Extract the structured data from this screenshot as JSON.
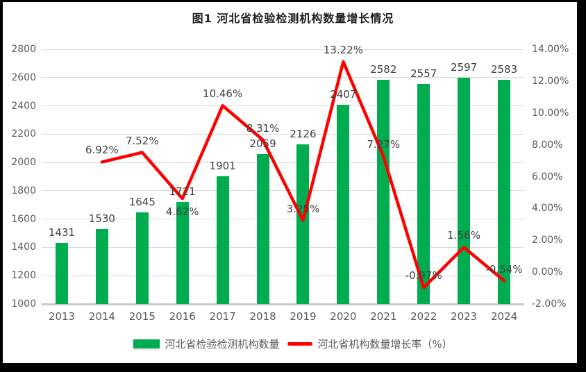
{
  "title": "图1  河北省检验检测机构数量增长情况",
  "chart_data": {
    "type": "bar+line combo",
    "title": "图1  河北省检验检测机构数量增长情况",
    "categories": [
      "2013",
      "2014",
      "2015",
      "2016",
      "2017",
      "2018",
      "2019",
      "2020",
      "2021",
      "2022",
      "2023",
      "2024"
    ],
    "series": [
      {
        "name": "河北省检验检测机构数量",
        "type": "bar",
        "axis": "left",
        "color": "#00AC50",
        "values": [
          1431,
          1530,
          1645,
          1721,
          1901,
          2059,
          2126,
          2407,
          2582,
          2557,
          2597,
          2583
        ],
        "labels": [
          "1431",
          "1530",
          "1645",
          "1721",
          "1901",
          "2059",
          "2126",
          "2407",
          "2582",
          "2557",
          "2597",
          "2583"
        ]
      },
      {
        "name": "河北省机构数量增长率（%）",
        "type": "line",
        "axis": "right",
        "color": "#FF0000",
        "values": [
          null,
          6.92,
          7.52,
          4.62,
          10.46,
          8.31,
          3.25,
          13.22,
          7.27,
          -0.97,
          1.56,
          -0.54
        ],
        "labels": [
          "",
          "6.92%",
          "7.52%",
          "4.62%",
          "10.46%",
          "8.31%",
          "3.25%",
          "13.22%",
          "7.27%",
          "-0.97%",
          "1.56%",
          "-0.54%"
        ]
      }
    ],
    "left_axis": {
      "min": 1000,
      "max": 2800,
      "step": 200,
      "tick_labels": [
        "1000",
        "1200",
        "1400",
        "1600",
        "1800",
        "2000",
        "2200",
        "2400",
        "2600",
        "2800"
      ]
    },
    "right_axis": {
      "min": -2,
      "max": 14,
      "step": 2,
      "tick_labels": [
        "-2.00%",
        "0.00%",
        "2.00%",
        "4.00%",
        "6.00%",
        "8.00%",
        "10.00%",
        "12.00%",
        "14.00%"
      ]
    },
    "grid": true,
    "legend_position": "bottom"
  },
  "legend": {
    "items": [
      {
        "label": "河北省检验检测机构数量",
        "marker": "rect",
        "color": "#00AC50"
      },
      {
        "label": "河北省机构数量增长率（%）",
        "marker": "line",
        "color": "#FF0000"
      }
    ]
  },
  "colors": {
    "bar_green": "#00AC50",
    "line_red": "#FF0000",
    "grid": "#D9D9D9",
    "axis_line": "#C9C9C9",
    "tick_text": "#595959",
    "data_label": "#404040",
    "frame": "#000000"
  }
}
